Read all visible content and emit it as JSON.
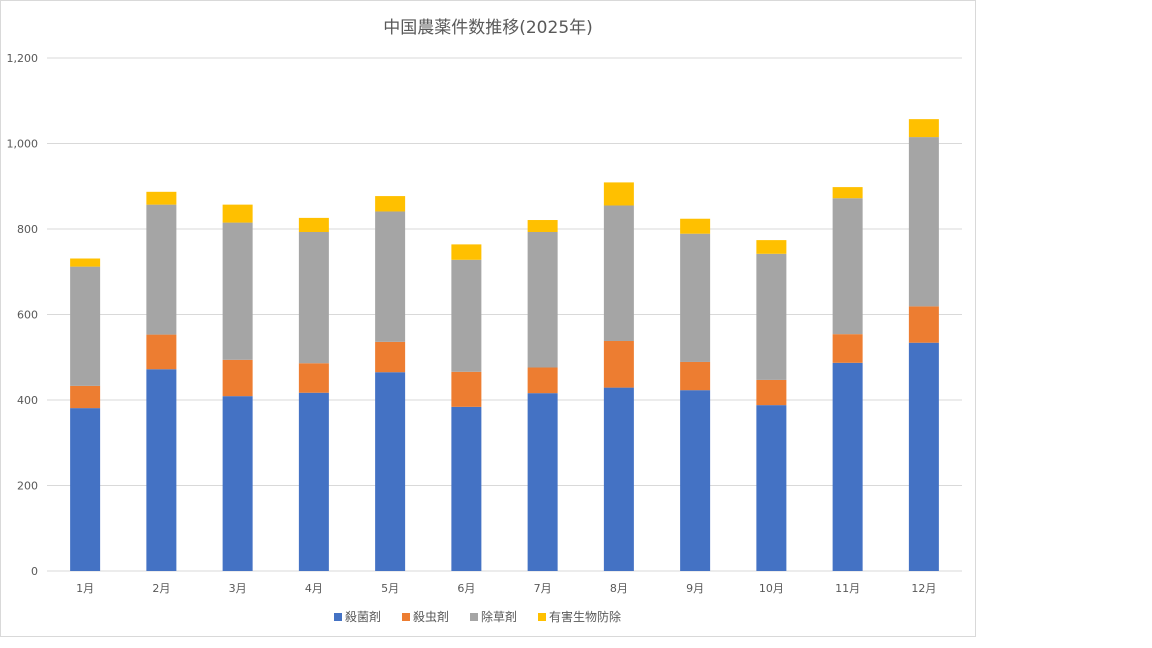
{
  "chart_data": {
    "type": "bar",
    "stacked": true,
    "title": "中国農薬件数推移(2025年)",
    "xlabel": "",
    "ylabel": "",
    "ylim": [
      0,
      1200
    ],
    "yticks": [
      "0",
      "200",
      "400",
      "600",
      "800",
      "1,000",
      "1,200"
    ],
    "ytick_values": [
      0,
      200,
      400,
      600,
      800,
      1000,
      1200
    ],
    "grid": true,
    "legend_position": "bottom",
    "categories": [
      "1月",
      "2月",
      "3月",
      "4月",
      "5月",
      "6月",
      "7月",
      "8月",
      "9月",
      "10月",
      "11月",
      "12月"
    ],
    "series": [
      {
        "name": "殺菌剤",
        "color": "#4472c4",
        "values": [
          381,
          472,
          409,
          417,
          465,
          384,
          416,
          429,
          423,
          388,
          487,
          534
        ]
      },
      {
        "name": "殺虫剤",
        "color": "#ed7d31",
        "values": [
          52,
          81,
          85,
          69,
          71,
          82,
          60,
          109,
          66,
          59,
          67,
          85
        ]
      },
      {
        "name": "除草剤",
        "color": "#a5a5a5",
        "values": [
          279,
          304,
          321,
          307,
          305,
          262,
          317,
          317,
          300,
          295,
          318,
          396
        ]
      },
      {
        "name": "有害生物防除",
        "color": "#ffc000",
        "values": [
          19,
          30,
          42,
          33,
          36,
          36,
          28,
          54,
          35,
          32,
          26,
          42
        ]
      }
    ]
  }
}
